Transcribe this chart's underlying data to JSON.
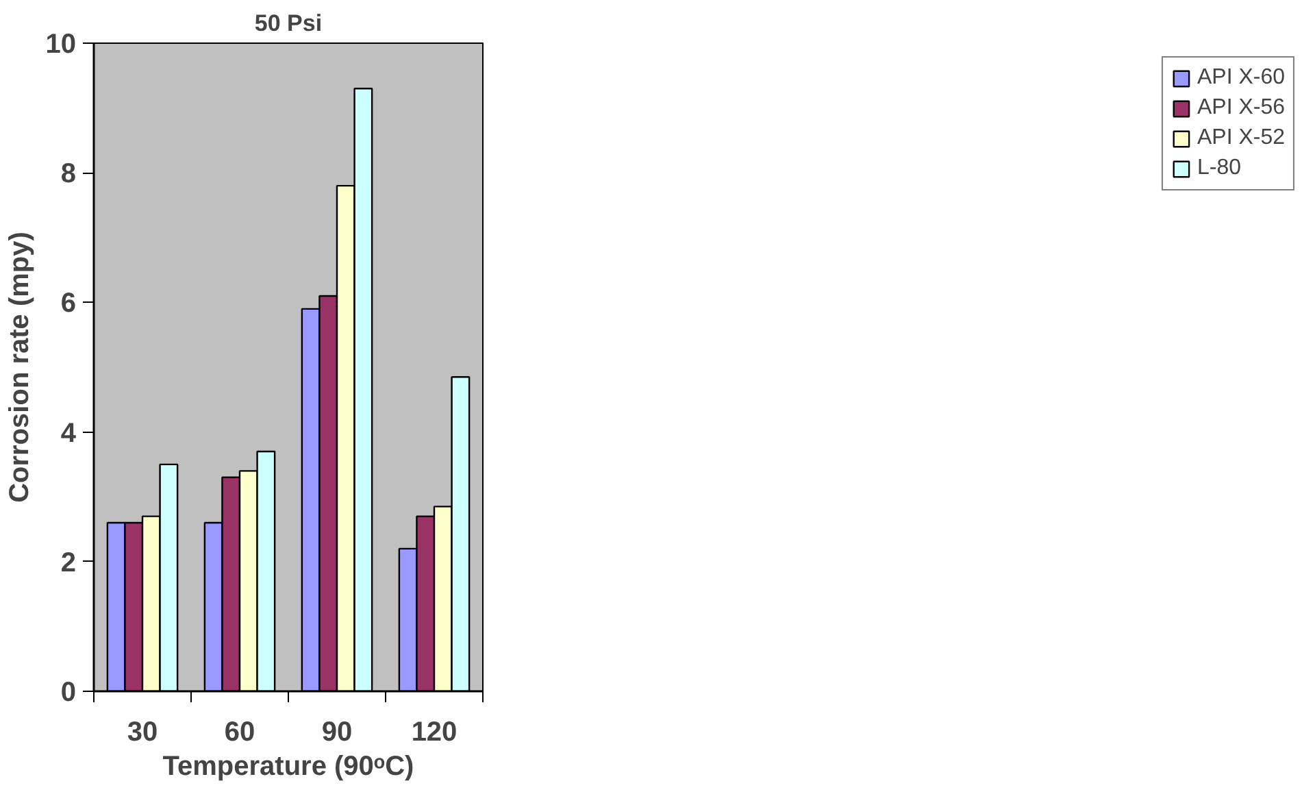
{
  "chart_data": {
    "type": "bar",
    "title": "50 Psi",
    "xlabel": "Temperature (90ᵒC)",
    "ylabel": "Corrosion rate (mpy)",
    "categories": [
      "30",
      "60",
      "90",
      "120"
    ],
    "series": [
      {
        "name": "API X-60",
        "color": "#9999ff",
        "values": [
          2.6,
          2.6,
          5.9,
          2.2
        ]
      },
      {
        "name": "API X-56",
        "color": "#993366",
        "values": [
          2.6,
          3.3,
          6.1,
          2.7
        ]
      },
      {
        "name": "API X-52",
        "color": "#ffffcc",
        "values": [
          2.7,
          3.4,
          7.8,
          2.85
        ]
      },
      {
        "name": "L-80",
        "color": "#ccffff",
        "values": [
          3.5,
          3.7,
          9.3,
          4.85
        ]
      }
    ],
    "ylim": [
      0,
      10
    ],
    "yticks": [
      0,
      2,
      4,
      6,
      8,
      10
    ],
    "grid": false,
    "legend": "right"
  }
}
